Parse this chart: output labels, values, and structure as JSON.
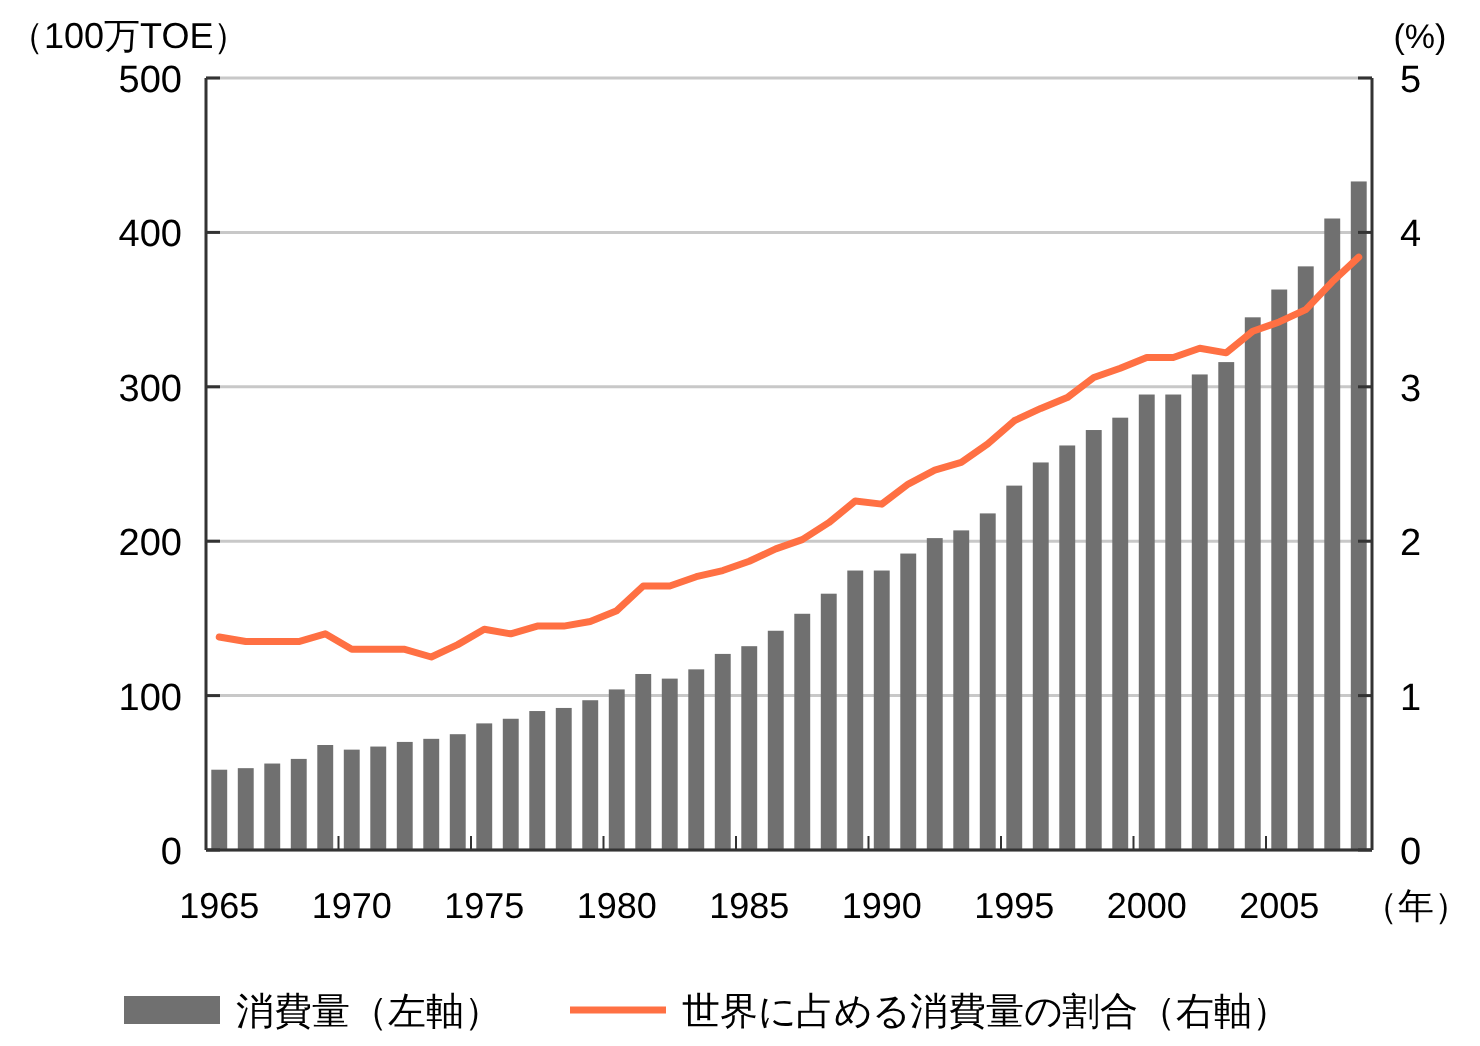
{
  "chart_data": {
    "type": "bar",
    "categories": [
      "1965",
      null,
      null,
      null,
      null,
      "1970",
      null,
      null,
      null,
      null,
      "1975",
      null,
      null,
      null,
      null,
      "1980",
      null,
      null,
      null,
      null,
      "1985",
      null,
      null,
      null,
      null,
      "1990",
      null,
      null,
      null,
      null,
      "1995",
      null,
      null,
      null,
      null,
      "2000",
      null,
      null,
      null,
      null,
      "2005",
      null,
      null,
      null
    ],
    "xlabel": "（年）",
    "ylabel": "（100万TOE）",
    "y2label": "(%)",
    "ylim": [
      0,
      500
    ],
    "yticks": [
      0,
      100,
      200,
      300,
      400,
      500
    ],
    "y2lim": [
      0,
      5
    ],
    "y2ticks": [
      0,
      1,
      2,
      3,
      4,
      5
    ],
    "grid": "y",
    "legend": "bottom",
    "series": [
      {
        "name": "消費量（左軸）",
        "color": "#707070",
        "values": [
          52,
          53,
          56,
          59,
          68,
          65,
          67,
          70,
          72,
          75,
          82,
          85,
          90,
          92,
          97,
          104,
          114,
          111,
          117,
          127,
          132,
          142,
          153,
          166,
          181,
          181,
          192,
          202,
          207,
          218,
          236,
          251,
          262,
          272,
          280,
          295,
          295,
          308,
          316,
          345,
          363,
          378,
          409,
          433
        ]
      },
      {
        "name": "世界に占める消費量の割合（右軸）",
        "type": "line",
        "axis": "y2",
        "color": "#ff7043",
        "values": [
          1.38,
          1.35,
          1.35,
          1.35,
          1.4,
          1.3,
          1.3,
          1.3,
          1.25,
          1.33,
          1.43,
          1.4,
          1.45,
          1.45,
          1.48,
          1.55,
          1.71,
          1.71,
          1.77,
          1.81,
          1.87,
          1.95,
          2.01,
          2.12,
          2.26,
          2.24,
          2.37,
          2.46,
          2.51,
          2.63,
          2.78,
          2.86,
          2.93,
          3.06,
          3.12,
          3.19,
          3.19,
          3.25,
          3.22,
          3.36,
          3.42,
          3.5,
          3.68,
          3.84
        ]
      }
    ]
  }
}
